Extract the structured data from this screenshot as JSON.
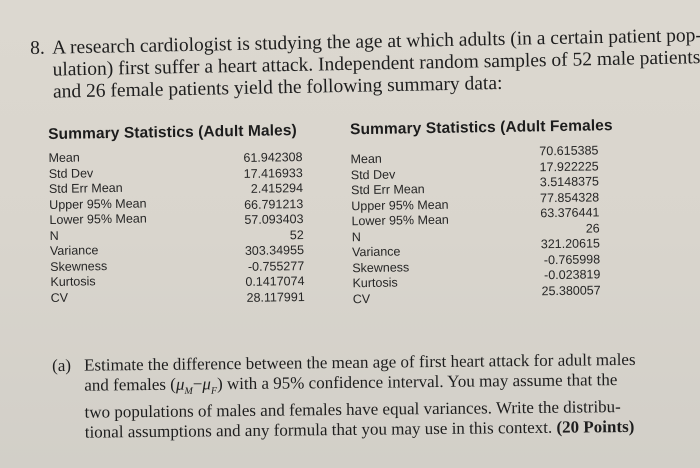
{
  "problem": {
    "number": "8.",
    "lines": [
      "A research cardiologist is studying the age at which adults (in a certain patient pop-",
      "ulation) first suffer a heart attack. Independent random samples of 52 male patients",
      "and 26 female patients yield the following summary data:"
    ]
  },
  "tables": {
    "males": {
      "title": "Summary Statistics (Adult Males)",
      "rows": [
        {
          "label": "Mean",
          "value": "61.942308"
        },
        {
          "label": "Std Dev",
          "value": "17.416933"
        },
        {
          "label": "Std Err Mean",
          "value": "2.415294"
        },
        {
          "label": "Upper 95% Mean",
          "value": "66.791213"
        },
        {
          "label": "Lower 95% Mean",
          "value": "57.093403"
        },
        {
          "label": "N",
          "value": "52"
        },
        {
          "label": "Variance",
          "value": "303.34955"
        },
        {
          "label": "Skewness",
          "value": "-0.755277"
        },
        {
          "label": "Kurtosis",
          "value": "0.1417074"
        },
        {
          "label": "CV",
          "value": "28.117991"
        }
      ]
    },
    "females": {
      "title": "Summary Statistics (Adult Females",
      "rows": [
        {
          "label": "Mean",
          "value": "70.615385"
        },
        {
          "label": "Std Dev",
          "value": "17.922225"
        },
        {
          "label": "Std Err Mean",
          "value": "3.5148375"
        },
        {
          "label": "Upper 95% Mean",
          "value": "77.854328"
        },
        {
          "label": "Lower 95% Mean",
          "value": "63.376441"
        },
        {
          "label": "N",
          "value": "26"
        },
        {
          "label": "Variance",
          "value": "321.20615"
        },
        {
          "label": "Skewness",
          "value": "-0.765998"
        },
        {
          "label": "Kurtosis",
          "value": "-0.023819"
        },
        {
          "label": "CV",
          "value": "25.380057"
        }
      ]
    }
  },
  "part_a": {
    "marker": "(a)",
    "line1": "Estimate the difference between the mean age of first heart attack for adult males",
    "line2_before": "and females (",
    "mu_symbol": "μ",
    "sub_m": "M",
    "minus": "−",
    "sub_f": "F",
    "line2_after": ") with a 95% confidence interval. You may assume that the",
    "line3": "two populations of males and females have equal variances. Write the distribu-",
    "line4": "tional assumptions and any formula that you may use in this context.",
    "points": "(20 Points)"
  }
}
